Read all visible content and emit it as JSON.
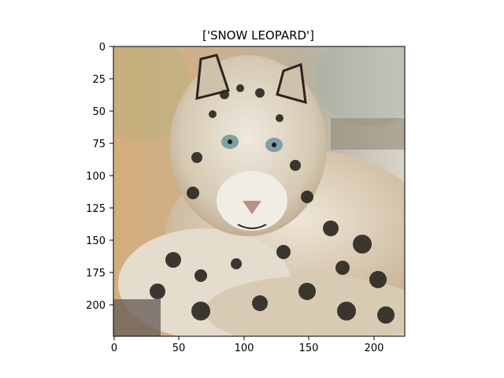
{
  "figure": {
    "title": "['SNOW LEOPARD']",
    "subject": "snow leopard lying down, facing camera",
    "image_extent": {
      "width": 224,
      "height": 224
    }
  },
  "x_axis": {
    "ticks": [
      0,
      50,
      100,
      150,
      200
    ],
    "tick_labels": [
      "0",
      "50",
      "100",
      "150",
      "200"
    ]
  },
  "y_axis": {
    "ticks": [
      0,
      25,
      50,
      75,
      100,
      125,
      150,
      175,
      200
    ],
    "tick_labels": [
      "0",
      "25",
      "50",
      "75",
      "100",
      "125",
      "150",
      "175",
      "200"
    ]
  },
  "colors": {
    "background_left": "#d7b58c",
    "background_right": "#c9c2b2",
    "fur_light": "#e9e1d2",
    "fur_mid": "#c8b79a",
    "spots": "#2a2520",
    "eyes": "#7fa0a5",
    "nose": "#b98f86"
  }
}
